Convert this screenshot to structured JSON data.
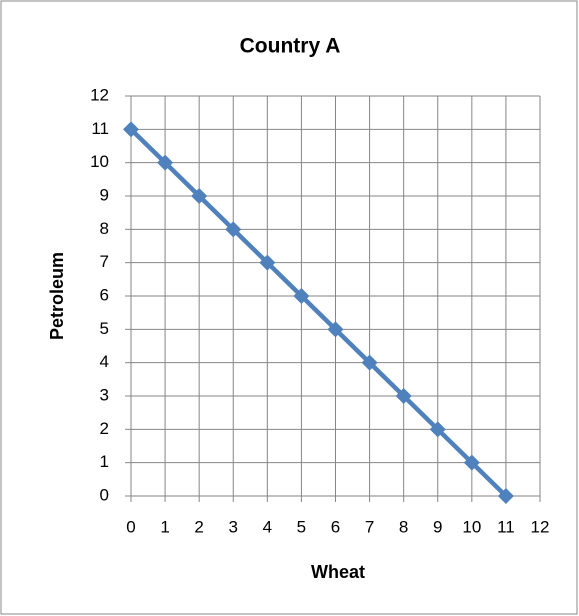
{
  "chart_data": {
    "type": "line",
    "title": "Country A",
    "xlabel": "Wheat",
    "ylabel": "Petroleum",
    "x": [
      0,
      1,
      2,
      3,
      4,
      5,
      6,
      7,
      8,
      9,
      10,
      11
    ],
    "values": [
      11,
      10,
      9,
      8,
      7,
      6,
      5,
      4,
      3,
      2,
      1,
      0
    ],
    "color": "#4f81bd",
    "xlim": [
      0,
      12
    ],
    "xticks": [
      0,
      1,
      2,
      3,
      4,
      5,
      6,
      7,
      8,
      9,
      10,
      11,
      12
    ],
    "ylim": [
      0,
      12
    ],
    "yticks": [
      0,
      1,
      2,
      3,
      4,
      5,
      6,
      7,
      8,
      9,
      10,
      11,
      12
    ],
    "grid": true
  }
}
